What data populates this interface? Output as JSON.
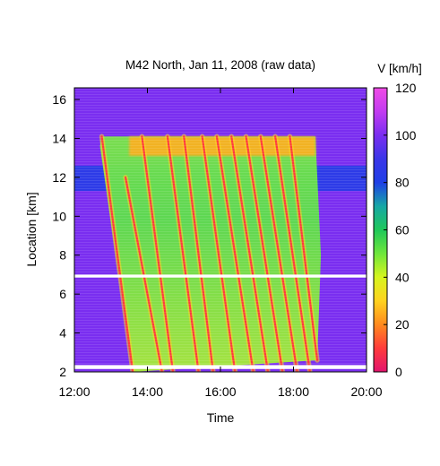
{
  "chart_data": {
    "type": "heatmap",
    "title": "M42 North, Jan 11, 2008 (raw data)",
    "xlabel": "Time",
    "ylabel": "Location [km]",
    "x_ticks": [
      "12:00",
      "14:00",
      "16:00",
      "18:00",
      "20:00"
    ],
    "xlim_hours": [
      12,
      20
    ],
    "y_ticks": [
      2,
      4,
      6,
      8,
      10,
      12,
      14,
      16
    ],
    "ylim": [
      2,
      16.6
    ],
    "colorbar": {
      "label": "V [km/h]",
      "range": [
        0,
        120
      ],
      "ticks": [
        0,
        20,
        40,
        60,
        80,
        100,
        120
      ],
      "colors": [
        "#e2146d",
        "#ff3b3b",
        "#ff8a1e",
        "#ffd21e",
        "#d6f51e",
        "#6ee63c",
        "#1fc85a",
        "#16a7a5",
        "#1f3fe6",
        "#3a36e8",
        "#7a2ef0",
        "#c23cf0",
        "#f04ce6"
      ]
    },
    "gaps_km": [
      [
        2.15,
        2.35
      ],
      [
        6.85,
        7.0
      ]
    ],
    "free_flow_speed_kmh": 100,
    "congestion_region": {
      "start_hour": 13.4,
      "end_hour": 18.6,
      "bottom_km": 2.6,
      "top_km": 14.1
    },
    "observed_features": [
      {
        "name": "slow band",
        "location_km": [
          13.1,
          14.1
        ],
        "time_hours": [
          13.5,
          18.6
        ],
        "speed_kmh": 25
      },
      {
        "name": "fast band",
        "location_km": [
          11.3,
          12.6
        ],
        "time_hours": [
          12,
          20
        ],
        "speed_kmh": 85
      }
    ],
    "stop_and_go_waves": [
      {
        "start_hour": 12.75,
        "start_km": 14.1,
        "end_hour": 13.6,
        "end_km": 2.0
      },
      {
        "start_hour": 13.4,
        "start_km": 12.0,
        "end_hour": 14.4,
        "end_km": 2.0
      },
      {
        "start_hour": 13.85,
        "start_km": 14.1,
        "end_hour": 14.7,
        "end_km": 2.0
      },
      {
        "start_hour": 14.55,
        "start_km": 14.1,
        "end_hour": 15.4,
        "end_km": 2.0
      },
      {
        "start_hour": 15.0,
        "start_km": 14.1,
        "end_hour": 15.8,
        "end_km": 2.0
      },
      {
        "start_hour": 15.5,
        "start_km": 14.1,
        "end_hour": 16.4,
        "end_km": 2.0
      },
      {
        "start_hour": 15.9,
        "start_km": 14.1,
        "end_hour": 16.9,
        "end_km": 2.0
      },
      {
        "start_hour": 16.3,
        "start_km": 14.1,
        "end_hour": 17.3,
        "end_km": 2.0
      },
      {
        "start_hour": 16.7,
        "start_km": 14.1,
        "end_hour": 17.7,
        "end_km": 2.0
      },
      {
        "start_hour": 17.1,
        "start_km": 14.1,
        "end_hour": 18.1,
        "end_km": 2.0
      },
      {
        "start_hour": 17.5,
        "start_km": 14.1,
        "end_hour": 18.45,
        "end_km": 2.0
      },
      {
        "start_hour": 17.9,
        "start_km": 14.1,
        "end_hour": 18.65,
        "end_km": 2.6
      }
    ]
  }
}
